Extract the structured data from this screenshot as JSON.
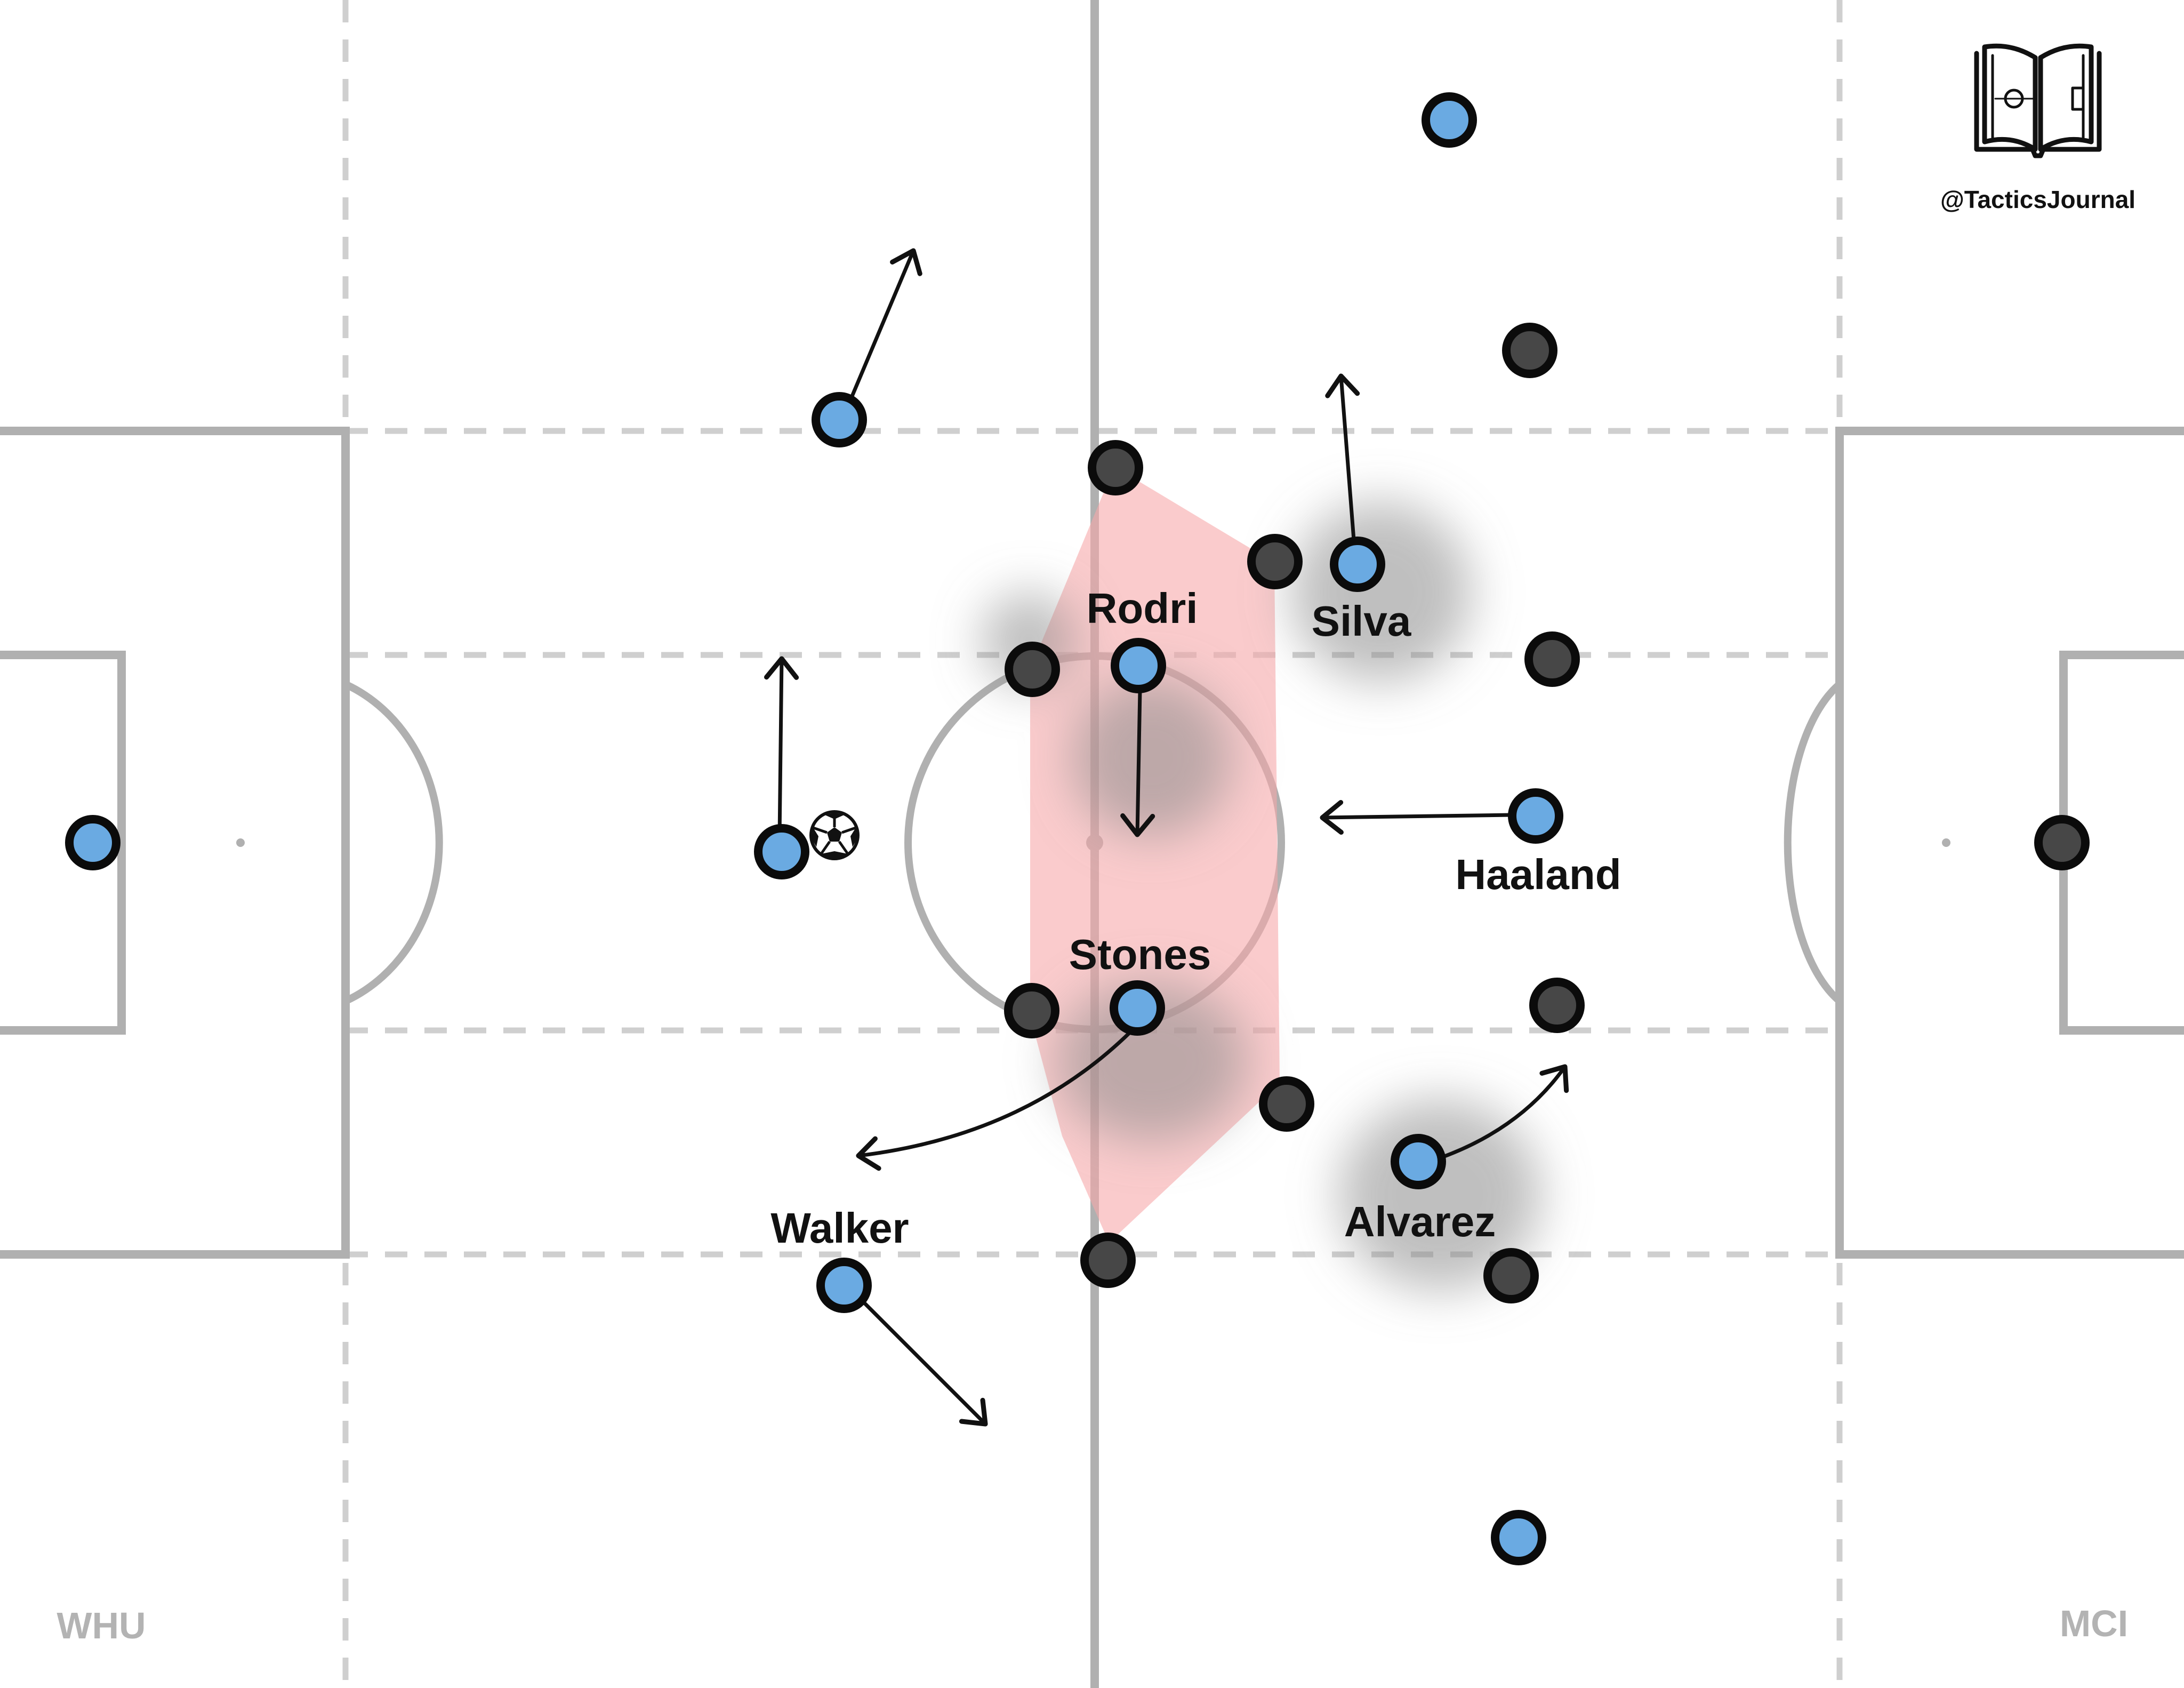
{
  "brand": {
    "handle": "@TacticsJournal",
    "logo_icon": "open-book-pitch-icon"
  },
  "teams": {
    "left": "WHU",
    "right": "MCI"
  },
  "colors": {
    "attack_team": "#6aaae2",
    "defend_team": "#474747",
    "outline": "#0b0b0b",
    "zone_fill": "#f7a9aa",
    "pitch_lines": "#b0b0b0",
    "dashed_lines": "#cfcfcf",
    "shadow": "#8a8a8a"
  },
  "player_labels": {
    "rodri": "Rodri",
    "silva": "Silva",
    "haaland": "Haaland",
    "stones": "Stones",
    "walker": "Walker",
    "alvarez": "Alvarez"
  },
  "ball_icon": "soccer-ball-icon"
}
